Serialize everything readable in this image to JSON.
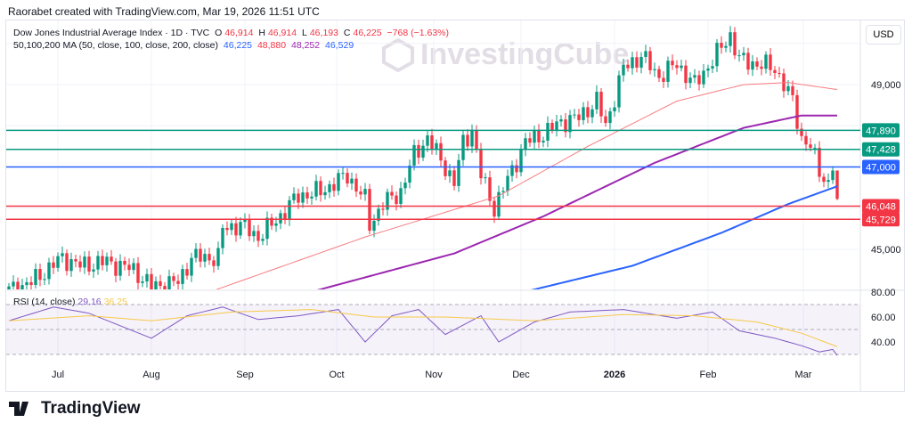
{
  "header": {
    "credit": "Raorabet created with TradingView.com, Mar 19, 2026 11:51 UTC"
  },
  "legend": {
    "symbol": "Dow Jones Industrial Average Index · 1D · TVC",
    "o_label": "O",
    "o": "46,914",
    "h_label": "H",
    "h": "46,914",
    "l_label": "L",
    "l": "46,193",
    "c_label": "C",
    "c": "46,225",
    "change": "−768 (−1.63%)",
    "ma_title": "50,100,200 MA (50, close, 100, close, 200, close)",
    "ma_values": [
      "46,225",
      "48,880",
      "48,252",
      "46,529"
    ]
  },
  "rsi_legend": {
    "title": "RSI (14, close)",
    "rsi": "29.16",
    "rsi_ma": "36.25"
  },
  "currency": "USD",
  "watermark": "InvestingCube",
  "brand": "TradingView",
  "colors": {
    "up": "#089981",
    "down": "#f23645",
    "ma50": "#f77c80",
    "ma100": "#9c27b0",
    "ma200": "#2962ff",
    "rsi": "#7e57c2",
    "rsi_ma": "#f7c948"
  },
  "chart_data": {
    "type": "candlestick",
    "ylim": [
      44.0,
      50.4
    ],
    "yticks": [
      {
        "v": 45000,
        "label": "45,000"
      },
      {
        "v": 49000,
        "label": "49,000"
      }
    ],
    "levels": [
      {
        "v": 47890,
        "label": "47,890",
        "color": "#089981"
      },
      {
        "v": 47428,
        "label": "47,428",
        "color": "#089981"
      },
      {
        "v": 47000,
        "label": "47,000",
        "color": "#2962ff"
      },
      {
        "v": 46048,
        "label": "46,048",
        "color": "#f23645"
      },
      {
        "v": 45729,
        "label": "45,729",
        "color": "#f23645"
      }
    ],
    "months": [
      {
        "i": 11,
        "label": "Jul"
      },
      {
        "i": 32,
        "label": "Aug"
      },
      {
        "i": 53,
        "label": "Sep"
      },
      {
        "i": 73.6,
        "label": "Oct"
      },
      {
        "i": 95.4,
        "label": "Nov"
      },
      {
        "i": 115,
        "label": "Dec"
      },
      {
        "i": 136,
        "label": "2026"
      },
      {
        "i": 157,
        "label": "Feb"
      },
      {
        "i": 178.4,
        "label": "Mar"
      }
    ],
    "close_anchors": [
      [
        0,
        44.0
      ],
      [
        5,
        44.2
      ],
      [
        12,
        44.8
      ],
      [
        16,
        44.6
      ],
      [
        22,
        44.7
      ],
      [
        28,
        44.5
      ],
      [
        32,
        44.1
      ],
      [
        38,
        44.2
      ],
      [
        41,
        44.8
      ],
      [
        47,
        44.8
      ],
      [
        48,
        45.5
      ],
      [
        52,
        45.6
      ],
      [
        56,
        45.3
      ],
      [
        60,
        45.7
      ],
      [
        65,
        46.3
      ],
      [
        70,
        46.4
      ],
      [
        76,
        46.8
      ],
      [
        80,
        46.2
      ],
      [
        81,
        45.6
      ],
      [
        84,
        46.1
      ],
      [
        88,
        46.4
      ],
      [
        91,
        47.3
      ],
      [
        94,
        47.7
      ],
      [
        98,
        47.0
      ],
      [
        100,
        46.6
      ],
      [
        102,
        47.6
      ],
      [
        104,
        47.9
      ],
      [
        106,
        46.8
      ],
      [
        109,
        46.0
      ],
      [
        112,
        46.7
      ],
      [
        116,
        47.6
      ],
      [
        120,
        47.8
      ],
      [
        124,
        48.1
      ],
      [
        128,
        48.2
      ],
      [
        132,
        48.6
      ],
      [
        134,
        48.0
      ],
      [
        138,
        49.4
      ],
      [
        142,
        49.7
      ],
      [
        146,
        49.2
      ],
      [
        150,
        49.5
      ],
      [
        154,
        49.0
      ],
      [
        158,
        49.6
      ],
      [
        162,
        50.2
      ],
      [
        164,
        49.6
      ],
      [
        168,
        49.5
      ],
      [
        172,
        49.4
      ],
      [
        176,
        48.6
      ],
      [
        178,
        47.7
      ],
      [
        180,
        47.5
      ],
      [
        182,
        46.9
      ],
      [
        184,
        46.6
      ],
      [
        185,
        46.914
      ]
    ],
    "last_candle": {
      "o": 46.914,
      "h": 46.914,
      "l": 46.193,
      "c": 46.225
    },
    "ma50": [
      [
        46,
        44.0
      ],
      [
        80,
        45.3
      ],
      [
        110,
        46.3
      ],
      [
        130,
        47.5
      ],
      [
        150,
        48.6
      ],
      [
        165,
        49.0
      ],
      [
        175,
        49.05
      ],
      [
        186,
        48.88
      ]
    ],
    "ma100": [
      [
        69,
        44.0
      ],
      [
        100,
        44.9
      ],
      [
        120,
        45.8
      ],
      [
        145,
        47.1
      ],
      [
        165,
        47.95
      ],
      [
        178,
        48.25
      ],
      [
        186,
        48.25
      ]
    ],
    "ma200": [
      [
        117,
        44.0
      ],
      [
        140,
        44.6
      ],
      [
        160,
        45.4
      ],
      [
        175,
        46.1
      ],
      [
        186,
        46.53
      ]
    ],
    "rsi_ticks": [
      {
        "v": 80,
        "label": "80.00"
      },
      {
        "v": 60,
        "label": "60.00"
      },
      {
        "v": 40,
        "label": "40.00"
      }
    ],
    "rsi": [
      [
        0,
        57
      ],
      [
        10,
        68
      ],
      [
        18,
        63
      ],
      [
        32,
        43
      ],
      [
        40,
        61
      ],
      [
        48,
        68
      ],
      [
        56,
        58
      ],
      [
        65,
        61
      ],
      [
        74,
        66
      ],
      [
        80,
        40
      ],
      [
        86,
        61
      ],
      [
        92,
        66
      ],
      [
        98,
        46
      ],
      [
        106,
        61
      ],
      [
        110,
        40
      ],
      [
        118,
        56
      ],
      [
        126,
        64
      ],
      [
        138,
        66
      ],
      [
        150,
        59
      ],
      [
        158,
        64
      ],
      [
        164,
        49
      ],
      [
        172,
        43
      ],
      [
        178,
        37
      ],
      [
        182,
        32
      ],
      [
        185,
        34
      ],
      [
        186,
        29.16
      ]
    ],
    "rsi_ma": [
      [
        0,
        57
      ],
      [
        18,
        61
      ],
      [
        32,
        57
      ],
      [
        50,
        64
      ],
      [
        68,
        66
      ],
      [
        82,
        60
      ],
      [
        98,
        60
      ],
      [
        118,
        57
      ],
      [
        138,
        62
      ],
      [
        154,
        61
      ],
      [
        168,
        56
      ],
      [
        178,
        47
      ],
      [
        186,
        36.25
      ]
    ]
  }
}
